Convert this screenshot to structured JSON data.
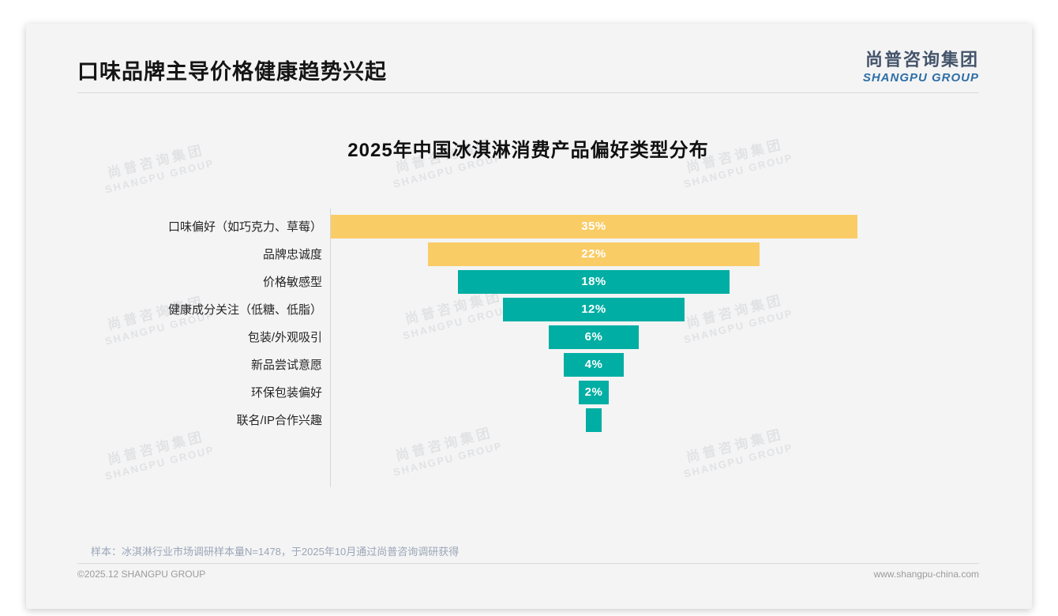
{
  "page": {
    "title": "口味品牌主导价格健康趋势兴起",
    "logo": {
      "cn": "尚普咨询集团",
      "en": "SHANGPU GROUP"
    },
    "watermark": {
      "cn": "尚普咨询集团",
      "en": "SHANGPU GROUP"
    },
    "footnote": "样本：冰淇淋行业市场调研样本量N=1478，于2025年10月通过尚普咨询调研获得",
    "footer_left": "©2025.12 SHANGPU GROUP",
    "footer_right": "www.shangpu-china.com"
  },
  "colors": {
    "yellow": "#FACC66",
    "teal": "#00AEA3",
    "rule": "#d9d9d9",
    "logo_cn": "#44546a",
    "logo_en": "#2e6ea5",
    "footnote_text": "#9aa6b6"
  },
  "chart_data": {
    "type": "bar",
    "variant": "centered-funnel",
    "orientation": "horizontal",
    "title": "2025年中国冰淇淋消费产品偏好类型分布",
    "categories": [
      "口味偏好（如巧克力、草莓）",
      "品牌忠诚度",
      "价格敏感型",
      "健康成分关注（低糖、低脂）",
      "包装/外观吸引",
      "新品尝试意愿",
      "环保包装偏好",
      "联名/IP合作兴趣"
    ],
    "values": [
      35,
      22,
      18,
      12,
      6,
      4,
      2,
      1
    ],
    "value_labels": [
      "35%",
      "22%",
      "18%",
      "12%",
      "6%",
      "4%",
      "2%",
      ""
    ],
    "series_colors": [
      "#FACC66",
      "#FACC66",
      "#00AEA3",
      "#00AEA3",
      "#00AEA3",
      "#00AEA3",
      "#00AEA3",
      "#00AEA3"
    ],
    "xlim": [
      0,
      35
    ],
    "grid": false,
    "legend": "none"
  }
}
